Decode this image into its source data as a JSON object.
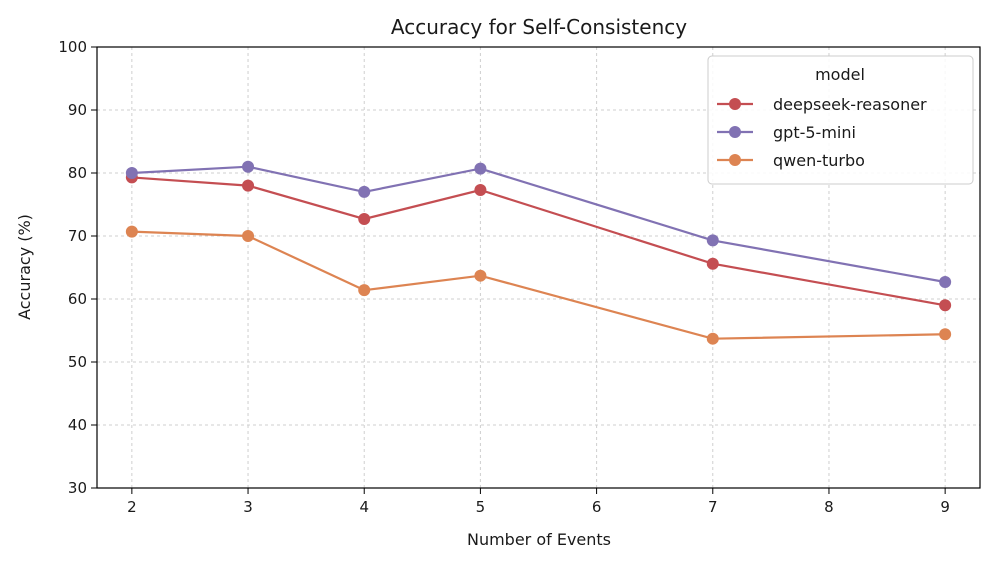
{
  "chart_data": {
    "type": "line",
    "title": "Accuracy for Self-Consistency",
    "xlabel": "Number of Events",
    "ylabel": "Accuracy (%)",
    "xlim": [
      1.7,
      9.3
    ],
    "ylim": [
      30,
      100
    ],
    "x_ticks": [
      2,
      3,
      4,
      5,
      6,
      7,
      8,
      9
    ],
    "y_ticks": [
      30,
      40,
      50,
      60,
      70,
      80,
      90,
      100
    ],
    "grid": true,
    "legend": {
      "title": "model",
      "placement": "top-right"
    },
    "series": [
      {
        "name": "deepseek-reasoner",
        "color": "#c44e52",
        "x": [
          2,
          3,
          4,
          5,
          7,
          9
        ],
        "values": [
          79.3,
          78.0,
          72.7,
          77.3,
          65.6,
          59.0
        ]
      },
      {
        "name": "gpt-5-mini",
        "color": "#8172b3",
        "x": [
          2,
          3,
          4,
          5,
          7,
          9
        ],
        "values": [
          80.0,
          81.0,
          77.0,
          80.7,
          69.3,
          62.7
        ]
      },
      {
        "name": "qwen-turbo",
        "color": "#dd8452",
        "x": [
          2,
          3,
          4,
          5,
          7,
          9
        ],
        "values": [
          70.7,
          70.0,
          61.4,
          63.7,
          53.7,
          54.4
        ]
      }
    ]
  }
}
